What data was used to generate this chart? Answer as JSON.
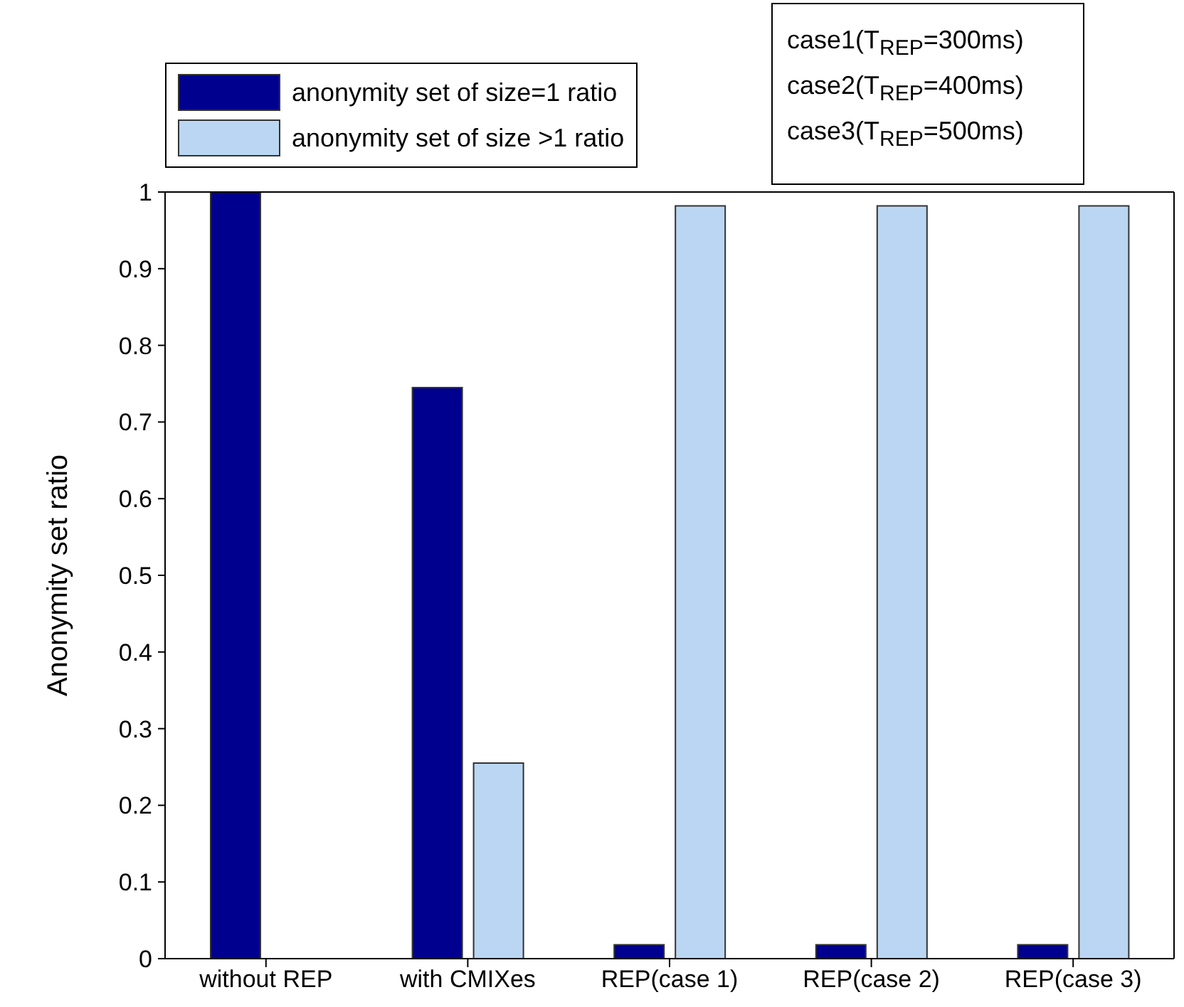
{
  "chart_data": {
    "type": "bar",
    "ylabel": "Anonymity set ratio",
    "categories": [
      "without REP",
      "with CMIXes",
      "REP(case 1)",
      "REP(case 2)",
      "REP(case 3)"
    ],
    "series": [
      {
        "name": "anonymity set of size=1 ratio",
        "color": "#00008f",
        "values": [
          1,
          0.745,
          0.018,
          0.018,
          0.018
        ]
      },
      {
        "name": "anonymity set of size >1 ratio",
        "color": "#bad6f2",
        "values": [
          0,
          0.255,
          0.982,
          0.982,
          0.982
        ]
      }
    ],
    "ylim": [
      0,
      1
    ],
    "yticks": [
      0,
      0.1,
      0.2,
      0.3,
      0.4,
      0.5,
      0.6,
      0.7,
      0.8,
      0.9,
      1
    ],
    "legend": "top left",
    "grid": false,
    "annotations": [
      "case1(T$_{REP}$=300ms)",
      "case2(T$_{REP}$=400ms)",
      "case3(T$_{REP}$=500ms)"
    ]
  }
}
